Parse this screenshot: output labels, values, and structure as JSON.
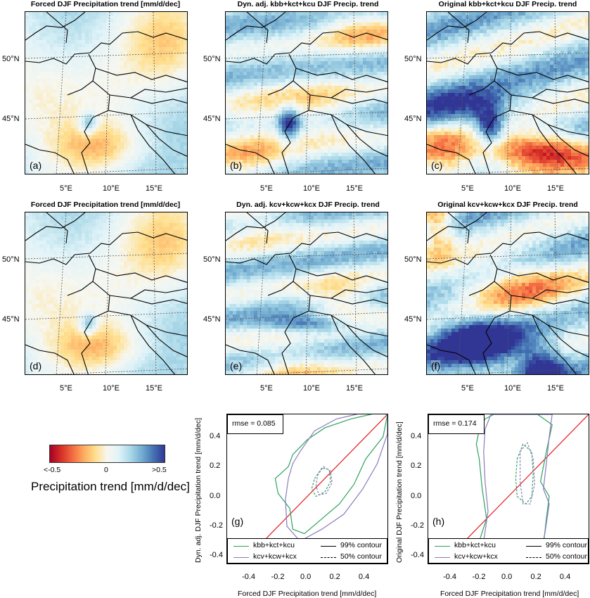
{
  "panels": [
    {
      "title": "Forced DJF Precipitation trend [mm/d/dec]",
      "label": "(a)",
      "pattern": "forced"
    },
    {
      "title": "Dyn. adj. kbb+kct+kcu DJF Precip. trend",
      "label": "(b)",
      "pattern": "dynA"
    },
    {
      "title": "Original kbb+kct+kcu DJF Precip. trend",
      "label": "(c)",
      "pattern": "origA"
    },
    {
      "title": "Forced DJF Precipitation trend [mm/d/dec]",
      "label": "(d)",
      "pattern": "forced"
    },
    {
      "title": "Dyn. adj. kcv+kcw+kcx DJF Precip. trend",
      "label": "(e)",
      "pattern": "dynB"
    },
    {
      "title": "Original kcv+kcw+kcx DJF Precip. trend",
      "label": "(f)",
      "pattern": "origB"
    }
  ],
  "map_axes": {
    "lat_labels": [
      "50°N",
      "45°N"
    ],
    "lon_labels": [
      "5°E",
      "10°E",
      "15°E"
    ]
  },
  "colorbar": {
    "title": "Precipitation trend [mm/d/dec]",
    "tick_labels": [
      "<-0.5",
      "0",
      ">0.5"
    ],
    "colors": [
      "#a50026",
      "#d73027",
      "#f46d43",
      "#fdae61",
      "#fee090",
      "#f7f7f0",
      "#e0f3f8",
      "#abd9e9",
      "#74add1",
      "#4575b4",
      "#313695"
    ]
  },
  "chart_data": [
    {
      "type": "line",
      "label": "(g)",
      "rmse": "rmse = 0.085",
      "xlabel": "Forced DJF Precipitation trend [mm/d/dec]",
      "ylabel": "Dyn. adj. DJF Precipitation trend [mm/d/dec]",
      "xlim": [
        -0.55,
        0.55
      ],
      "ylim": [
        -0.45,
        0.55
      ],
      "xticks": [
        "-0.4",
        "-0.2",
        "0.0",
        "0.2",
        "0.4"
      ],
      "yticks": [
        "-0.4",
        "-0.2",
        "0.0",
        "0.2",
        "0.4"
      ],
      "one_to_one_line": {
        "color": "#e31a1c"
      },
      "legend": {
        "series": [
          "kbb+kct+kcu",
          "kcv+kcw+kcx"
        ],
        "contours": [
          "99% contour",
          "50% contour"
        ]
      },
      "series": [
        {
          "name": "kbb+kct+kcu",
          "color": "#2ca25f",
          "contour": "99% contour",
          "points": [
            [
              -0.13,
              0.2
            ],
            [
              -0.1,
              0.28
            ],
            [
              0.0,
              0.38
            ],
            [
              0.12,
              0.46
            ],
            [
              0.3,
              0.52
            ],
            [
              0.48,
              0.56
            ],
            [
              0.55,
              0.55
            ],
            [
              0.52,
              0.4
            ],
            [
              0.4,
              0.25
            ],
            [
              0.32,
              0.08
            ],
            [
              0.22,
              -0.05
            ],
            [
              0.1,
              -0.15
            ],
            [
              -0.02,
              -0.25
            ],
            [
              -0.1,
              -0.22
            ],
            [
              -0.12,
              -0.08
            ],
            [
              -0.2,
              0.02
            ],
            [
              -0.22,
              0.12
            ],
            [
              -0.13,
              0.2
            ]
          ]
        },
        {
          "name": "kcv+kcw+kcx",
          "color": "#8c7bbd",
          "contour": "99% contour",
          "points": [
            [
              -0.05,
              0.3
            ],
            [
              0.05,
              0.44
            ],
            [
              0.2,
              0.52
            ],
            [
              0.38,
              0.56
            ],
            [
              0.55,
              0.56
            ],
            [
              0.55,
              0.42
            ],
            [
              0.48,
              0.22
            ],
            [
              0.38,
              0.05
            ],
            [
              0.25,
              -0.12
            ],
            [
              0.1,
              -0.22
            ],
            [
              -0.05,
              -0.3
            ],
            [
              -0.14,
              -0.2
            ],
            [
              -0.15,
              -0.02
            ],
            [
              -0.13,
              0.12
            ],
            [
              -0.1,
              0.22
            ],
            [
              -0.05,
              0.3
            ]
          ]
        },
        {
          "name": "kbb+kct+kcu",
          "color": "#2ca25f",
          "contour": "50% contour",
          "points": [
            [
              0.05,
              0.12
            ],
            [
              0.1,
              0.19
            ],
            [
              0.15,
              0.18
            ],
            [
              0.16,
              0.1
            ],
            [
              0.12,
              0.03
            ],
            [
              0.06,
              0.0
            ],
            [
              0.03,
              0.05
            ],
            [
              0.05,
              0.12
            ]
          ]
        },
        {
          "name": "kcv+kcw+kcx",
          "color": "#8c7bbd",
          "contour": "50% contour",
          "points": [
            [
              0.07,
              0.14
            ],
            [
              0.11,
              0.2
            ],
            [
              0.16,
              0.17
            ],
            [
              0.17,
              0.09
            ],
            [
              0.13,
              0.02
            ],
            [
              0.08,
              0.01
            ],
            [
              0.06,
              0.07
            ],
            [
              0.07,
              0.14
            ]
          ]
        }
      ]
    },
    {
      "type": "line",
      "label": "(h)",
      "rmse": "rmse = 0.174",
      "xlabel": "Forced DJF Precipitation trend [mm/d/dec]",
      "ylabel": "Original DJF Precipitation trend [mm/d/dec]",
      "xlim": [
        -0.55,
        0.55
      ],
      "ylim": [
        -0.45,
        0.55
      ],
      "xticks": [
        "-0.4",
        "-0.2",
        "0.0",
        "0.2",
        "0.4"
      ],
      "yticks": [
        "-0.4",
        "-0.2",
        "0.0",
        "0.2",
        "0.4"
      ],
      "one_to_one_line": {
        "color": "#e31a1c"
      },
      "legend": {
        "series": [
          "kbb+kct+kcu",
          "kcv+kcw+kcx"
        ],
        "contours": [
          "99% contour",
          "50% contour"
        ]
      },
      "series": [
        {
          "name": "kbb+kct+kcu",
          "color": "#2ca25f",
          "contour": "99% contour",
          "points": [
            [
              -0.2,
              0.45
            ],
            [
              -0.16,
              0.52
            ],
            [
              -0.1,
              0.55
            ],
            [
              0.2,
              0.55
            ],
            [
              0.3,
              0.48
            ],
            [
              0.26,
              0.3
            ],
            [
              0.22,
              0.1
            ],
            [
              0.28,
              0.0
            ],
            [
              0.26,
              -0.15
            ],
            [
              0.24,
              -0.33
            ],
            [
              0.22,
              -0.45
            ],
            [
              -0.2,
              -0.45
            ],
            [
              -0.2,
              -0.3
            ],
            [
              -0.15,
              -0.15
            ],
            [
              -0.18,
              0.05
            ],
            [
              -0.2,
              0.25
            ],
            [
              -0.22,
              0.35
            ],
            [
              -0.2,
              0.45
            ]
          ]
        },
        {
          "name": "kcv+kcw+kcx",
          "color": "#8c7bbd",
          "contour": "99% contour",
          "points": [
            [
              -0.16,
              0.45
            ],
            [
              -0.12,
              0.55
            ],
            [
              0.3,
              0.55
            ],
            [
              0.28,
              0.4
            ],
            [
              0.26,
              0.22
            ],
            [
              0.24,
              0.05
            ],
            [
              0.28,
              -0.05
            ],
            [
              0.25,
              -0.25
            ],
            [
              0.2,
              -0.45
            ],
            [
              -0.18,
              -0.45
            ],
            [
              -0.17,
              -0.3
            ],
            [
              -0.14,
              -0.1
            ],
            [
              -0.16,
              0.1
            ],
            [
              -0.17,
              0.3
            ],
            [
              -0.16,
              0.45
            ]
          ]
        },
        {
          "name": "kbb+kct+kcu",
          "color": "#2ca25f",
          "contour": "50% contour",
          "points": [
            [
              0.06,
              0.25
            ],
            [
              0.1,
              0.35
            ],
            [
              0.16,
              0.3
            ],
            [
              0.17,
              0.15
            ],
            [
              0.16,
              0.0
            ],
            [
              0.12,
              -0.05
            ],
            [
              0.06,
              0.0
            ],
            [
              0.05,
              0.12
            ],
            [
              0.06,
              0.25
            ]
          ]
        },
        {
          "name": "kcv+kcw+kcx",
          "color": "#8c7bbd",
          "contour": "50% contour",
          "points": [
            [
              0.08,
              0.3
            ],
            [
              0.13,
              0.36
            ],
            [
              0.17,
              0.25
            ],
            [
              0.18,
              0.08
            ],
            [
              0.15,
              -0.05
            ],
            [
              0.1,
              -0.05
            ],
            [
              0.08,
              0.1
            ],
            [
              0.08,
              0.3
            ]
          ]
        }
      ]
    }
  ]
}
